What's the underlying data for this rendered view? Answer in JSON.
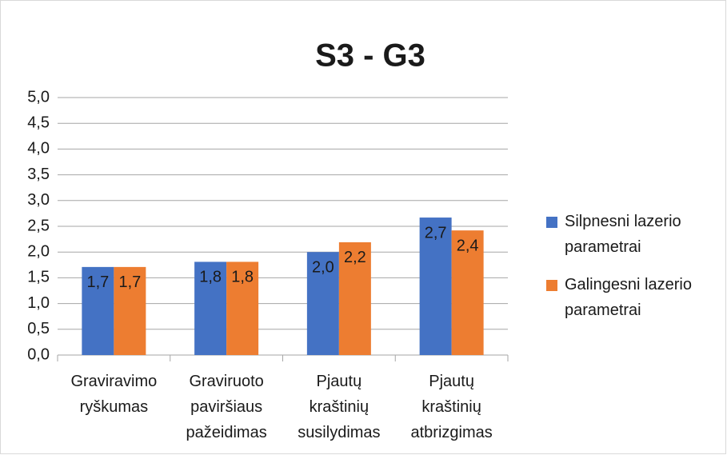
{
  "chart_data": {
    "type": "bar",
    "title": "S3 - G3",
    "categories": [
      "Graviravimo ryškumas",
      "Graviruoto paviršiaus pažeidimas",
      "Pjautų kraštinių susilydimas",
      "Pjautų kraštinių atbrizgimas"
    ],
    "series": [
      {
        "name": "Silpnesni lazerio parametrai",
        "color": "#4472c4",
        "values": [
          1.71,
          1.81,
          2.0,
          2.67
        ],
        "value_labels": [
          "1,7",
          "1,8",
          "2,0",
          "2,7"
        ]
      },
      {
        "name": "Galingesni lazerio parametrai",
        "color": "#ed7d31",
        "values": [
          1.71,
          1.81,
          2.19,
          2.42
        ],
        "value_labels": [
          "1,7",
          "1,8",
          "2,2",
          "2,4"
        ]
      }
    ],
    "ylim": [
      0,
      5
    ],
    "yticks": [
      {
        "value": 0,
        "label": "0,0"
      },
      {
        "value": 0.5,
        "label": "0,5"
      },
      {
        "value": 1,
        "label": "1,0"
      },
      {
        "value": 1.5,
        "label": "1,5"
      },
      {
        "value": 2,
        "label": "2,0"
      },
      {
        "value": 2.5,
        "label": "2,5"
      },
      {
        "value": 3,
        "label": "3,0"
      },
      {
        "value": 3.5,
        "label": "3,5"
      },
      {
        "value": 4,
        "label": "4,0"
      },
      {
        "value": 4.5,
        "label": "4,5"
      },
      {
        "value": 5,
        "label": "5,0"
      }
    ],
    "grid": true,
    "legend": "right"
  }
}
